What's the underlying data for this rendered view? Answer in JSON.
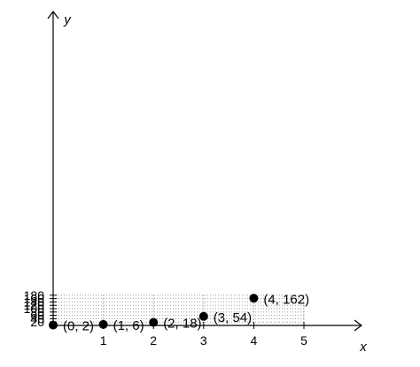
{
  "chart_data": {
    "type": "scatter",
    "title": "",
    "xlabel": "x",
    "ylabel": "y",
    "xlim": [
      0,
      5
    ],
    "ylim": [
      0,
      180
    ],
    "xticks": [
      1,
      2,
      3,
      4,
      5
    ],
    "yticks": [
      20,
      40,
      60,
      80,
      100,
      120,
      140,
      160,
      180
    ],
    "grid": true,
    "legend": "none",
    "series": [
      {
        "points": [
          {
            "x": 0,
            "y": 2,
            "label": "(0, 2)"
          },
          {
            "x": 1,
            "y": 6,
            "label": "(1, 6)"
          },
          {
            "x": 2,
            "y": 18,
            "label": "(2, 18)"
          },
          {
            "x": 3,
            "y": 54,
            "label": "(3, 54)"
          },
          {
            "x": 4,
            "y": 162,
            "label": "(4, 162)"
          }
        ]
      }
    ],
    "colors": {
      "axis": "#000000",
      "grid": "#9a9a9a",
      "point": "#000000"
    }
  }
}
